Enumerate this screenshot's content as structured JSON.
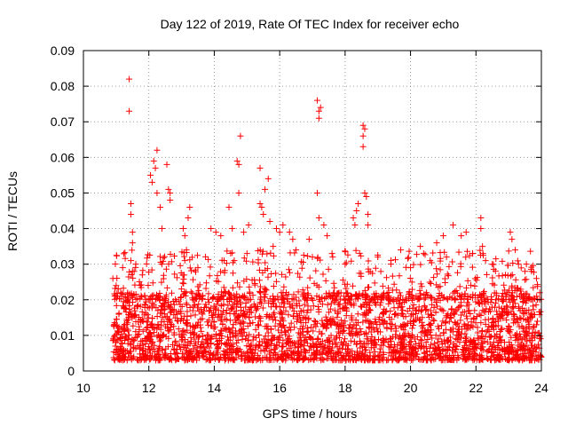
{
  "chart_data": {
    "type": "scatter",
    "title": "Day 122 of 2019, Rate Of TEC Index for receiver echo",
    "xlabel": "GPS time / hours",
    "ylabel": "ROTI / TECUs",
    "xlim": [
      10,
      24
    ],
    "ylim": [
      0,
      0.09
    ],
    "xticks": [
      "10",
      "12",
      "14",
      "16",
      "18",
      "20",
      "22",
      "24"
    ],
    "yticks": [
      "0",
      "0.01",
      "0.02",
      "0.03",
      "0.04",
      "0.05",
      "0.06",
      "0.07",
      "0.08",
      "0.09"
    ],
    "grid": true,
    "marker": "+",
    "color": "#ff0000",
    "series": [
      {
        "name": "ROTI",
        "points": [
          [
            11.4,
            0.082
          ],
          [
            11.4,
            0.073
          ],
          [
            11.45,
            0.047
          ],
          [
            11.45,
            0.044
          ],
          [
            11.5,
            0.039
          ],
          [
            11.5,
            0.036
          ],
          [
            11.45,
            0.031
          ],
          [
            11.5,
            0.028
          ],
          [
            11.55,
            0.028
          ],
          [
            11.6,
            0.03
          ],
          [
            12.05,
            0.055
          ],
          [
            12.1,
            0.053
          ],
          [
            12.15,
            0.059
          ],
          [
            12.2,
            0.057
          ],
          [
            12.25,
            0.062
          ],
          [
            12.25,
            0.05
          ],
          [
            12.35,
            0.046
          ],
          [
            12.4,
            0.04
          ],
          [
            12.55,
            0.058
          ],
          [
            12.6,
            0.051
          ],
          [
            12.65,
            0.05
          ],
          [
            12.65,
            0.048
          ],
          [
            13.05,
            0.04
          ],
          [
            13.1,
            0.038
          ],
          [
            13.25,
            0.046
          ],
          [
            13.2,
            0.043
          ],
          [
            13.15,
            0.034
          ],
          [
            13.1,
            0.031
          ],
          [
            13.9,
            0.04
          ],
          [
            14.05,
            0.039
          ],
          [
            14.2,
            0.038
          ],
          [
            14.45,
            0.046
          ],
          [
            14.55,
            0.04
          ],
          [
            14.7,
            0.059
          ],
          [
            14.75,
            0.058
          ],
          [
            14.8,
            0.066
          ],
          [
            14.75,
            0.05
          ],
          [
            14.9,
            0.039
          ],
          [
            15.05,
            0.041
          ],
          [
            15.4,
            0.057
          ],
          [
            15.4,
            0.047
          ],
          [
            15.45,
            0.046
          ],
          [
            15.5,
            0.044
          ],
          [
            15.55,
            0.051
          ],
          [
            15.65,
            0.054
          ],
          [
            15.7,
            0.042
          ],
          [
            15.9,
            0.04
          ],
          [
            16.0,
            0.039
          ],
          [
            16.1,
            0.041
          ],
          [
            16.3,
            0.039
          ],
          [
            16.4,
            0.037
          ],
          [
            16.9,
            0.037
          ],
          [
            17.15,
            0.076
          ],
          [
            17.2,
            0.073
          ],
          [
            17.25,
            0.074
          ],
          [
            17.2,
            0.071
          ],
          [
            17.15,
            0.05
          ],
          [
            17.2,
            0.043
          ],
          [
            17.35,
            0.041
          ],
          [
            17.45,
            0.038
          ],
          [
            18.25,
            0.043
          ],
          [
            18.3,
            0.041
          ],
          [
            18.35,
            0.045
          ],
          [
            18.4,
            0.047
          ],
          [
            18.55,
            0.069
          ],
          [
            18.6,
            0.068
          ],
          [
            18.55,
            0.066
          ],
          [
            18.55,
            0.063
          ],
          [
            18.6,
            0.05
          ],
          [
            18.65,
            0.049
          ],
          [
            18.7,
            0.044
          ],
          [
            18.7,
            0.041
          ],
          [
            19.7,
            0.034
          ],
          [
            20.3,
            0.035
          ],
          [
            20.4,
            0.033
          ],
          [
            20.8,
            0.036
          ],
          [
            21.0,
            0.038
          ],
          [
            21.3,
            0.041
          ],
          [
            21.55,
            0.038
          ],
          [
            21.7,
            0.039
          ],
          [
            22.15,
            0.043
          ],
          [
            22.15,
            0.04
          ],
          [
            22.2,
            0.035
          ],
          [
            23.05,
            0.039
          ],
          [
            23.1,
            0.037
          ],
          [
            23.2,
            0.034
          ],
          [
            23.3,
            0.03
          ],
          [
            23.7,
            0.028
          ],
          [
            23.85,
            0.026
          ],
          [
            23.95,
            0.022
          ],
          [
            10.9,
            0.026
          ],
          [
            11.0,
            0.024
          ],
          [
            11.2,
            0.029
          ],
          [
            11.8,
            0.027
          ],
          [
            12.4,
            0.03
          ],
          [
            13.5,
            0.029
          ],
          [
            14.3,
            0.031
          ],
          [
            15.0,
            0.033
          ],
          [
            15.8,
            0.035
          ],
          [
            16.5,
            0.034
          ],
          [
            17.0,
            0.032
          ],
          [
            17.6,
            0.033
          ],
          [
            18.0,
            0.03
          ],
          [
            19.0,
            0.032
          ],
          [
            19.4,
            0.03
          ],
          [
            20.0,
            0.029
          ],
          [
            20.6,
            0.031
          ],
          [
            21.1,
            0.032
          ],
          [
            21.9,
            0.033
          ],
          [
            22.5,
            0.03
          ],
          [
            22.9,
            0.027
          ],
          [
            23.5,
            0.028
          ]
        ]
      }
    ],
    "dense_band": {
      "x_range": [
        10.9,
        24
      ],
      "y_range": [
        0.003,
        0.022
      ],
      "note": "continuous dense cloud of points"
    }
  }
}
